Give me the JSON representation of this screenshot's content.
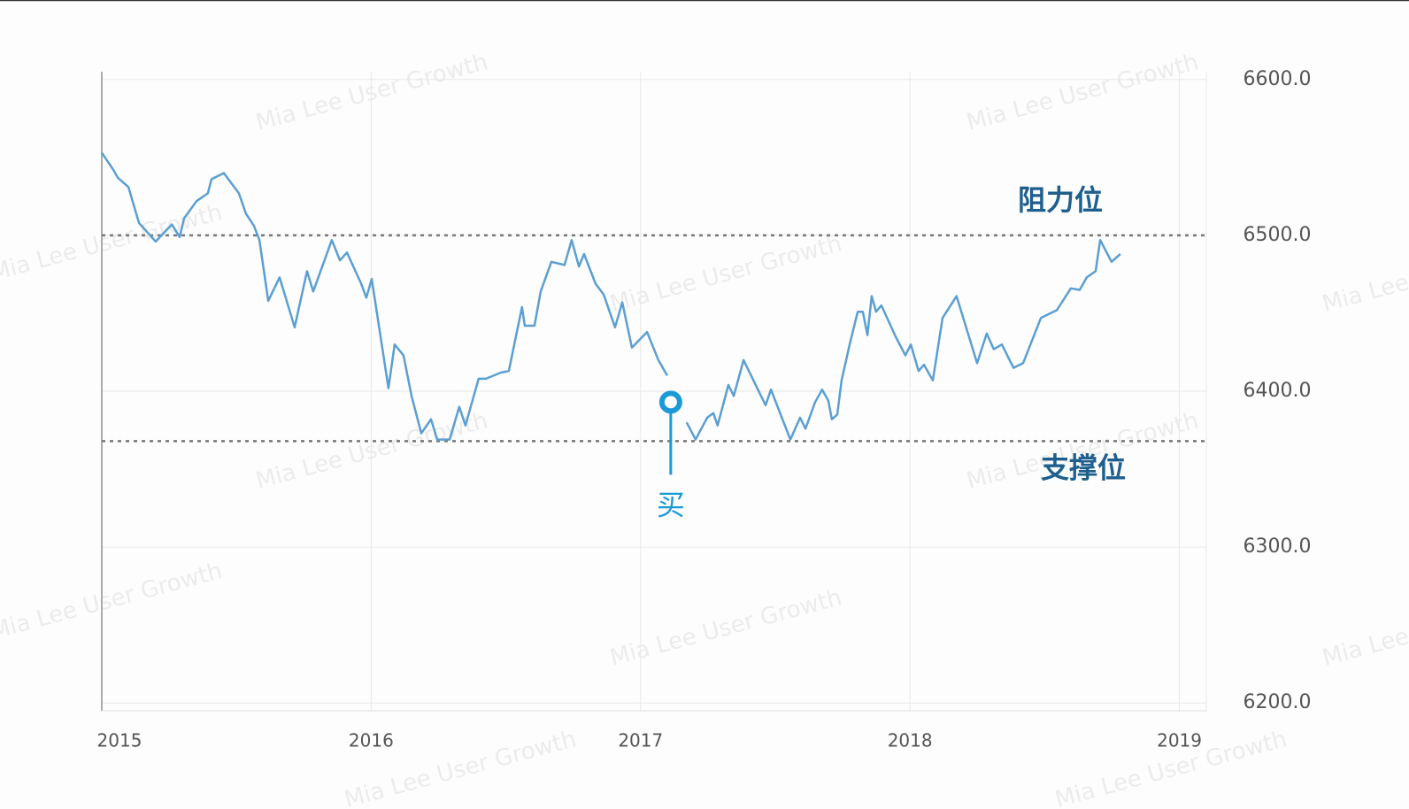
{
  "chart_data": {
    "type": "line",
    "watermark": "Mia Lee User Growth",
    "x": [
      2015.0,
      2015.043,
      2015.059,
      2015.099,
      2015.138,
      2015.2,
      2015.26,
      2015.289,
      2015.306,
      2015.352,
      2015.394,
      2015.407,
      2015.453,
      2015.509,
      2015.535,
      2015.565,
      2015.585,
      2015.618,
      2015.66,
      2015.716,
      2015.762,
      2015.785,
      2015.854,
      2015.884,
      2015.91,
      2015.963,
      2015.982,
      2016.002,
      2016.064,
      2016.087,
      2016.12,
      2016.15,
      2016.186,
      2016.222,
      2016.245,
      2016.291,
      2016.327,
      2016.35,
      2016.399,
      2016.426,
      2016.482,
      2016.511,
      2016.56,
      2016.57,
      2016.606,
      2016.629,
      2016.669,
      2016.718,
      2016.744,
      2016.771,
      2016.79,
      2016.833,
      2016.863,
      2016.905,
      2016.932,
      2016.968,
      2017.024,
      2017.066,
      2017.099,
      null,
      2017.171,
      2017.204,
      2017.247,
      2017.27,
      2017.286,
      2017.326,
      2017.346,
      2017.382,
      2017.464,
      2017.484,
      2017.556,
      2017.592,
      2017.612,
      2017.648,
      2017.674,
      2017.697,
      2017.71,
      2017.73,
      2017.746,
      2017.776,
      2017.806,
      2017.825,
      2017.842,
      2017.858,
      2017.874,
      2017.894,
      2017.947,
      2017.983,
      2018.003,
      2018.032,
      2018.052,
      2018.085,
      2018.121,
      2018.173,
      2018.249,
      2018.285,
      2018.311,
      2018.341,
      2018.384,
      2018.42,
      2018.486,
      2018.545,
      2018.597,
      2018.63,
      2018.656,
      2018.689,
      2018.706,
      2018.748,
      2018.781
    ],
    "values": [
      6553,
      6542,
      6537,
      6531,
      6508,
      6496,
      6507,
      6499,
      6511,
      6522,
      6527,
      6536,
      6540,
      6527,
      6514,
      6506,
      6497,
      6458,
      6473,
      6441,
      6477,
      6464,
      6497,
      6484,
      6489,
      6469,
      6460,
      6472,
      6402,
      6430,
      6423,
      6397,
      6373,
      6382,
      6369,
      6369,
      6390,
      6378,
      6408,
      6408,
      6412,
      6413,
      6454,
      6442,
      6442,
      6464,
      6483,
      6481,
      6497,
      6480,
      6488,
      6469,
      6462,
      6441,
      6457,
      6428,
      6438,
      6420,
      6410,
      null,
      6380,
      6369,
      6383,
      6386,
      6378,
      6404,
      6397,
      6420,
      6391,
      6401,
      6369,
      6383,
      6376,
      6393,
      6401,
      6394,
      6382,
      6385,
      6407,
      6430,
      6451,
      6451,
      6436,
      6461,
      6451,
      6455,
      6435,
      6423,
      6430,
      6413,
      6417,
      6407,
      6447,
      6461,
      6418,
      6437,
      6427,
      6430,
      6415,
      6418,
      6447,
      6452,
      6466,
      6465,
      6473,
      6477,
      6497,
      6483,
      6488
    ],
    "color": "#5b9fd2",
    "xlim": [
      2015,
      2019.1
    ],
    "xticks": [
      2015,
      2016,
      2017,
      2018,
      2019
    ],
    "ylim": [
      6195,
      6605
    ],
    "yticks": [
      {
        "value": 6600,
        "label": "6600.0"
      },
      {
        "value": 6500,
        "label": "6500.0"
      },
      {
        "value": 6400,
        "label": "6400.0"
      },
      {
        "value": 6300,
        "label": "6300.0"
      },
      {
        "value": 6200,
        "label": "6200.0"
      }
    ],
    "grid": true,
    "reference_lines": [
      {
        "value": 6500,
        "label": "阻力位"
      },
      {
        "value": 6368,
        "label": "支撑位"
      }
    ],
    "annotation": {
      "text": "买",
      "x": 2017.112,
      "y": 6393,
      "color": "#1a9ad6"
    }
  }
}
